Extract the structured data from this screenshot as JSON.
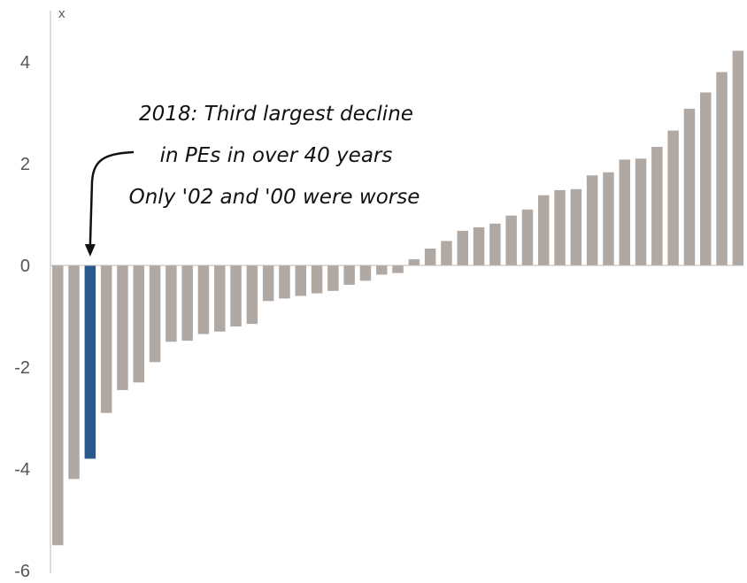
{
  "chart_data": {
    "type": "bar",
    "y_unit_label": "x",
    "ylim": [
      -6,
      4.5
    ],
    "yticks": [
      4,
      2,
      0,
      -2,
      -4,
      -6
    ],
    "ytick_labels": [
      "4",
      "2",
      "0",
      "-2",
      "-4",
      "-6"
    ],
    "grid": false,
    "legend": "none",
    "values": [
      -5.5,
      -4.2,
      -3.8,
      -2.9,
      -2.45,
      -2.3,
      -1.9,
      -1.5,
      -1.48,
      -1.35,
      -1.3,
      -1.2,
      -1.15,
      -0.7,
      -0.65,
      -0.6,
      -0.55,
      -0.5,
      -0.38,
      -0.3,
      -0.18,
      -0.15,
      0.12,
      0.33,
      0.48,
      0.68,
      0.75,
      0.82,
      0.98,
      1.1,
      1.38,
      1.48,
      1.5,
      1.77,
      1.83,
      2.08,
      2.1,
      2.33,
      2.65,
      3.08,
      3.4,
      3.8,
      4.22
    ],
    "highlight_index": 2,
    "colors": {
      "bar": "#b0a8a3",
      "highlight": "#2a5a8c",
      "axis": "#bbbbbb"
    },
    "annotation": {
      "lines": [
        "2018: Third largest decline",
        "in PEs in over 40 years",
        "Only '02 and '00 were worse"
      ],
      "arrow_target_index": 2
    }
  }
}
